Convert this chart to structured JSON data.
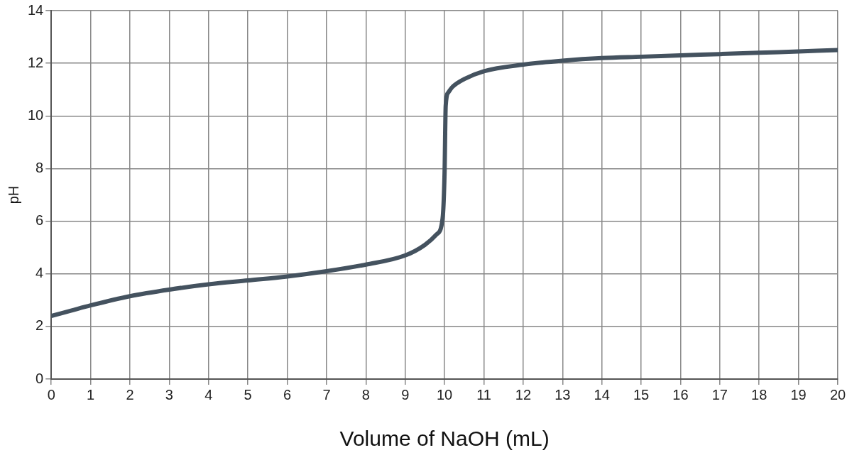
{
  "chart_data": {
    "type": "line",
    "xlabel": "Volume of NaOH (mL)",
    "ylabel": "pH",
    "xlim": [
      0,
      20
    ],
    "xticks": [
      0,
      1,
      2,
      3,
      4,
      5,
      6,
      7,
      8,
      9,
      10,
      11,
      12,
      13,
      14,
      15,
      16,
      17,
      18,
      19,
      20
    ],
    "ylim": [
      0,
      14
    ],
    "yticks": [
      0,
      2,
      4,
      6,
      8,
      10,
      12,
      14
    ],
    "grid": true,
    "legend": false,
    "marker": "none",
    "line_style": "solid",
    "series": [
      {
        "color": "#44525f",
        "x": [
          0,
          0.5,
          1,
          2,
          3,
          4,
          5,
          6,
          7,
          8,
          9,
          9.5,
          9.8,
          9.95,
          10,
          10.03,
          10.1,
          10.2,
          10.5,
          11,
          12,
          13,
          14,
          15,
          16,
          17,
          18,
          19,
          20
        ],
        "values": [
          2.4,
          2.6,
          2.8,
          3.15,
          3.4,
          3.6,
          3.75,
          3.9,
          4.1,
          4.35,
          4.7,
          5.1,
          5.5,
          6.1,
          7.8,
          10.4,
          10.9,
          11.1,
          11.4,
          11.7,
          11.95,
          12.1,
          12.2,
          12.25,
          12.3,
          12.35,
          12.4,
          12.45,
          12.5
        ]
      }
    ]
  }
}
